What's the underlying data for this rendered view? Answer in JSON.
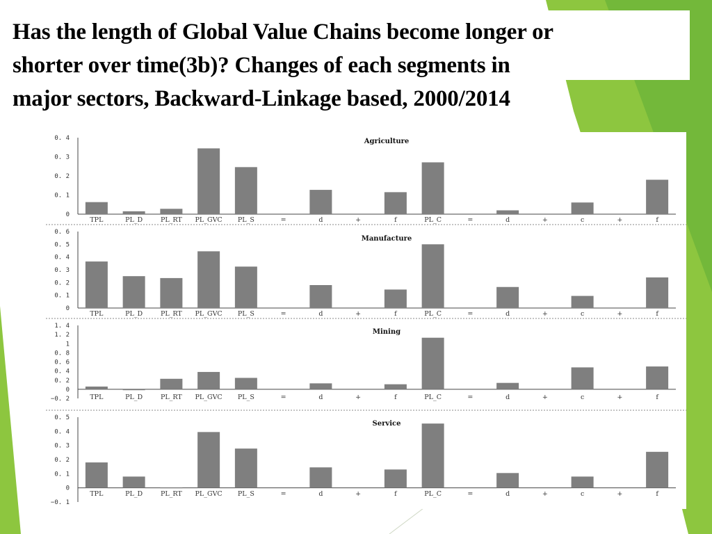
{
  "title_lines": [
    "Has the length of Global Value Chains become longer or",
    "shorter over time(3b)? Changes of  each segments in",
    "major sectors, Backward-Linkage based, 2000/2014"
  ],
  "colors": {
    "bar": "#7f7f7f",
    "accent_green": "#8dc63f",
    "dark_green": "#5a9e2f"
  },
  "chart_data": [
    {
      "type": "bar",
      "title": "Agriculture",
      "categories": [
        "TPL",
        "PL_D",
        "PL_RT",
        "PL_GVC",
        "PL_S",
        "=",
        "d",
        "+",
        "f",
        "PL_C",
        "=",
        "d",
        "+",
        "c",
        "+",
        "f"
      ],
      "values": [
        0.063,
        0.015,
        0.028,
        0.344,
        0.246,
        null,
        0.127,
        null,
        0.115,
        0.271,
        null,
        0.02,
        null,
        0.061,
        null,
        0.18
      ],
      "yticks": [
        "0. 4",
        "0. 3",
        "0. 2",
        "0. 1",
        "0"
      ],
      "ylim": [
        0,
        0.4
      ]
    },
    {
      "type": "bar",
      "title": "Manufacture",
      "categories": [
        "TPL",
        "PL_D",
        "PL_RT",
        "PL_GVC",
        "PL_S",
        "=",
        "d",
        "+",
        "f",
        "PL_C",
        "=",
        "d",
        "+",
        "c",
        "+",
        "f"
      ],
      "values": [
        0.365,
        0.25,
        0.235,
        0.445,
        0.325,
        null,
        0.18,
        null,
        0.145,
        0.5,
        null,
        0.165,
        null,
        0.095,
        null,
        0.24
      ],
      "yticks": [
        "0. 6",
        "0. 5",
        "0. 4",
        "0. 3",
        "0. 2",
        "0. 1",
        "0"
      ],
      "ylim": [
        0,
        0.6
      ]
    },
    {
      "type": "bar",
      "title": "Mining",
      "categories": [
        "TPL",
        "PL_D",
        "PL_RT",
        "PL_GVC",
        "PL_S",
        "=",
        "d",
        "+",
        "f",
        "PL_C",
        "=",
        "d",
        "+",
        "c",
        "+",
        "f"
      ],
      "values": [
        0.06,
        -0.02,
        0.23,
        0.38,
        0.25,
        null,
        0.13,
        null,
        0.11,
        1.13,
        null,
        0.14,
        null,
        0.48,
        null,
        0.5
      ],
      "yticks": [
        "1. 4",
        "1. 2",
        "1",
        "0. 8",
        "0. 6",
        "0. 4",
        "0. 2",
        "0",
        "−0. 2"
      ],
      "ylim": [
        -0.2,
        1.4
      ]
    },
    {
      "type": "bar",
      "title": "Service",
      "categories": [
        "TPL",
        "PL_D",
        "PL_RT",
        "PL_GVC",
        "PL_S",
        "=",
        "d",
        "+",
        "f",
        "PL_C",
        "=",
        "d",
        "+",
        "c",
        "+",
        "f"
      ],
      "values": [
        0.18,
        0.08,
        0.0,
        0.395,
        0.278,
        null,
        0.145,
        null,
        0.13,
        0.455,
        null,
        0.105,
        null,
        0.08,
        null,
        0.255
      ],
      "yticks": [
        "0. 5",
        "0. 4",
        "0. 3",
        "0. 2",
        "0. 1",
        "0",
        "−0. 1"
      ],
      "ylim": [
        -0.1,
        0.5
      ]
    }
  ]
}
